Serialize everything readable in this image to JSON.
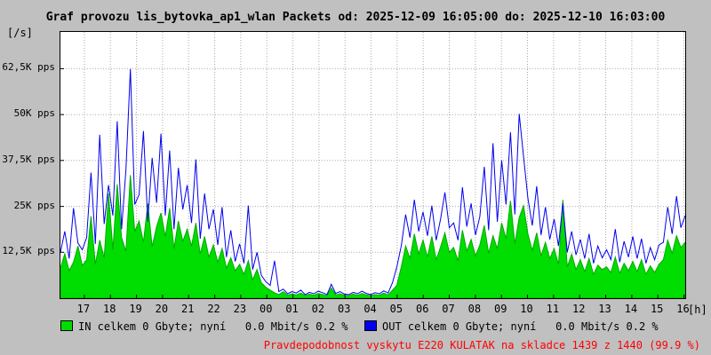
{
  "title": "Graf provozu lis_bytovka_ap1_wlan Packets od: 2025-12-09 16:05:00 do: 2025-12-10 16:03:00",
  "y_unit_label": "[/s]",
  "x_unit_label": "[h]",
  "legend": {
    "in_label": "IN celkem 0 Gbyte; nyní   0.0 Mbit/s 0.2 %",
    "out_label": "OUT celkem 0 Gbyte; nyní   0.0 Mbit/s 0.2 %"
  },
  "footer_note": "Pravdepodobnost vyskytu E220 KULATAK na skladce 1439 z 1440 (99.9 %)",
  "colors": {
    "background": "#c0c0c0",
    "plot_background": "#ffffff",
    "grid": "#aaaaaa",
    "axis": "#000000",
    "in_fill": "#00dd00",
    "in_stroke": "#00aa00",
    "out_stroke": "#0000ee",
    "note": "#ff0000",
    "title": "#000000"
  },
  "chart_data": {
    "type": "area",
    "title": "Graf provozu lis_bytovka_ap1_wlan Packets od: 2025-12-09 16:05:00 do: 2025-12-10 16:03:00",
    "xlabel": "[h]",
    "ylabel": "[/s]",
    "x_start_hour": 16.083,
    "x_end_hour": 40.05,
    "x_tick_hours": [
      17,
      18,
      19,
      20,
      21,
      22,
      23,
      24,
      25,
      26,
      27,
      28,
      29,
      30,
      31,
      32,
      33,
      34,
      35,
      36,
      37,
      38,
      39,
      40
    ],
    "x_tick_labels": [
      "17",
      "18",
      "19",
      "20",
      "21",
      "22",
      "23",
      "00",
      "01",
      "02",
      "03",
      "04",
      "05",
      "06",
      "07",
      "08",
      "09",
      "10",
      "11",
      "12",
      "13",
      "14",
      "15",
      "16"
    ],
    "ylim_kpps": [
      0,
      72.5
    ],
    "y_ticks": [
      {
        "value": 12.5,
        "label": "12,5K pps"
      },
      {
        "value": 25,
        "label": "25K pps"
      },
      {
        "value": 37.5,
        "label": "37,5K pps"
      },
      {
        "value": 50,
        "label": "50K pps"
      },
      {
        "value": 62.5,
        "label": "62,5K pps"
      }
    ],
    "legend_position": "bottom",
    "grid": true,
    "series": [
      {
        "name": "IN",
        "style": "area",
        "values_kpps": [
          8.2,
          12.1,
          7.5,
          9.8,
          14.2,
          8.9,
          10.5,
          22.3,
          9.2,
          15.8,
          11.0,
          28.5,
          13.2,
          31.0,
          16.5,
          12.8,
          33.5,
          18.2,
          21.0,
          15.2,
          25.8,
          14.0,
          19.5,
          23.2,
          16.8,
          24.5,
          13.5,
          21.0,
          15.5,
          18.8,
          14.2,
          20.5,
          12.0,
          16.8,
          11.2,
          14.5,
          9.8,
          13.5,
          8.2,
          11.0,
          7.5,
          9.2,
          6.5,
          10.2,
          5.0,
          7.8,
          4.2,
          3.0,
          2.2,
          1.5,
          1.0,
          1.8,
          0.8,
          1.2,
          0.9,
          1.4,
          0.7,
          1.1,
          0.8,
          1.3,
          1.0,
          0.7,
          2.8,
          0.9,
          1.2,
          0.8,
          0.7,
          1.1,
          0.8,
          1.3,
          0.9,
          0.7,
          1.0,
          0.8,
          1.4,
          0.9,
          2.2,
          3.5,
          8.5,
          14.2,
          10.8,
          17.5,
          12.0,
          15.8,
          11.2,
          16.8,
          10.5,
          14.0,
          17.8,
          12.5,
          13.8,
          10.2,
          18.5,
          12.8,
          16.0,
          11.5,
          14.5,
          19.8,
          12.2,
          17.0,
          13.5,
          20.5,
          16.2,
          26.5,
          14.8,
          22.0,
          25.2,
          17.5,
          13.0,
          17.8,
          11.5,
          15.2,
          10.8,
          13.5,
          9.2,
          26.8,
          8.5,
          12.0,
          7.8,
          10.5,
          7.2,
          10.8,
          6.5,
          9.0,
          7.8,
          8.5,
          7.0,
          11.2,
          6.8,
          9.5,
          7.5,
          10.0,
          7.2,
          10.5,
          6.5,
          8.8,
          7.0,
          9.2,
          10.5,
          15.8,
          12.2,
          17.0,
          13.8,
          15.2
        ]
      },
      {
        "name": "OUT",
        "style": "line",
        "values_kpps": [
          12.5,
          18.2,
          10.8,
          24.5,
          15.0,
          13.2,
          16.5,
          34.2,
          14.8,
          44.5,
          20.2,
          30.8,
          22.5,
          48.2,
          18.8,
          35.0,
          62.4,
          25.5,
          28.2,
          45.5,
          20.8,
          38.2,
          26.0,
          44.8,
          22.5,
          40.2,
          18.8,
          35.5,
          24.2,
          30.8,
          20.5,
          37.8,
          16.2,
          28.5,
          18.8,
          24.2,
          14.5,
          24.8,
          11.2,
          18.5,
          10.0,
          14.8,
          9.5,
          25.2,
          7.8,
          12.5,
          6.2,
          4.5,
          3.5,
          10.2,
          1.8,
          2.5,
          1.2,
          1.8,
          1.4,
          2.2,
          1.0,
          1.6,
          1.2,
          1.9,
          1.5,
          1.0,
          3.8,
          1.3,
          1.8,
          1.1,
          1.0,
          1.6,
          1.2,
          1.9,
          1.3,
          1.0,
          1.5,
          1.2,
          2.0,
          1.4,
          4.2,
          8.5,
          14.2,
          22.8,
          16.5,
          26.8,
          18.2,
          23.5,
          17.0,
          25.2,
          15.8,
          21.5,
          28.8,
          19.2,
          20.5,
          15.8,
          30.2,
          19.5,
          25.8,
          17.2,
          22.2,
          35.8,
          18.5,
          42.2,
          20.8,
          37.5,
          25.5,
          45.2,
          22.8,
          50.2,
          38.5,
          27.2,
          19.8,
          30.5,
          17.2,
          24.8,
          16.0,
          21.5,
          14.2,
          25.8,
          12.5,
          18.2,
          11.8,
          16.0,
          10.8,
          17.5,
          9.5,
          14.2,
          11.0,
          13.2,
          10.5,
          18.8,
          9.8,
          15.5,
          11.2,
          16.8,
          10.8,
          16.2,
          9.5,
          13.8,
          10.5,
          14.5,
          15.2,
          24.8,
          17.5,
          27.8,
          19.2,
          22.5
        ]
      }
    ]
  }
}
